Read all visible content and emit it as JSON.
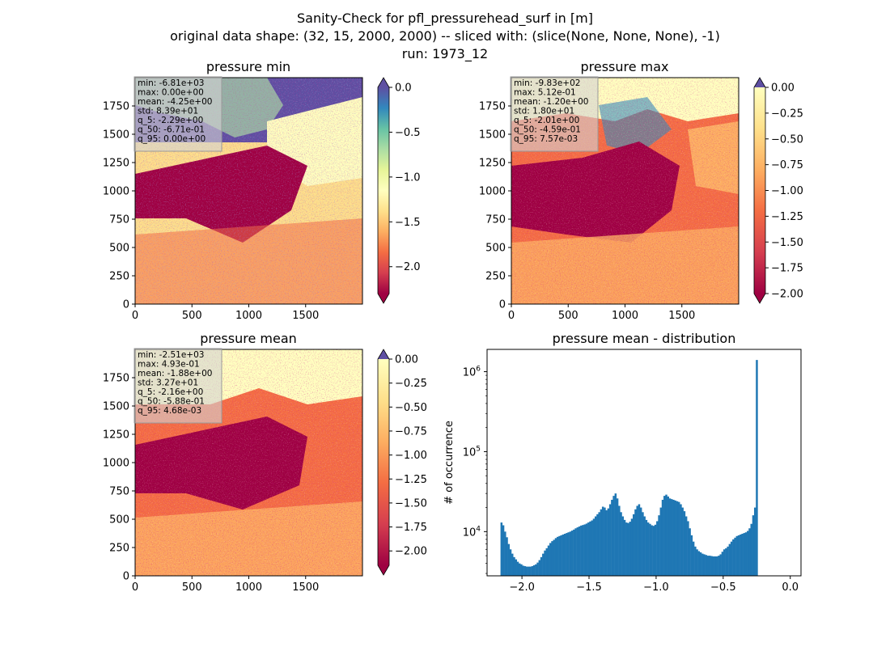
{
  "suptitle": [
    "Sanity-Check for pfl_pressurehead_surf in [m]",
    "original data shape: (32, 15, 2000, 2000) -- sliced with: (slice(None, None, None), -1)",
    "run: 1973_12"
  ],
  "chart_data": [
    {
      "type": "heatmap",
      "title": "pressure min",
      "colormap": "Spectral",
      "extend": "both",
      "x_ticks": [
        "0",
        "500",
        "1000",
        "1500"
      ],
      "y_ticks": [
        "0",
        "250",
        "500",
        "750",
        "1000",
        "1250",
        "1500",
        "1750"
      ],
      "xlim": [
        0,
        2000
      ],
      "ylim": [
        0,
        2000
      ],
      "clim": [
        -2.3,
        0.0
      ],
      "colorbar_ticks": [
        0.0,
        -0.5,
        -1.0,
        -1.5,
        -2.0
      ],
      "colorbar_tick_labels": [
        "0.0",
        "−0.5",
        "−1.0",
        "−1.5",
        "−2.0"
      ],
      "stats": [
        "min: -6.81e+03",
        "max: 0.00e+00",
        "mean: -4.25e+00",
        "std: 8.39e+01",
        "q_5: -2.29e+00",
        "q_50: -6.71e-01",
        "q_95: 0.00e+00"
      ]
    },
    {
      "type": "heatmap",
      "title": "pressure max",
      "colormap": "Spectral",
      "extend": "both",
      "x_ticks": [
        "0",
        "500",
        "1000",
        "1500"
      ],
      "y_ticks": [
        "0",
        "250",
        "500",
        "750",
        "1000",
        "1250",
        "1500",
        "1750"
      ],
      "xlim": [
        0,
        2000
      ],
      "ylim": [
        0,
        2000
      ],
      "clim": [
        -2.0,
        0.0
      ],
      "colorbar_ticks": [
        0.0,
        -0.25,
        -0.5,
        -0.75,
        -1.0,
        -1.25,
        -1.5,
        -1.75,
        -2.0
      ],
      "colorbar_tick_labels": [
        "0.00",
        "−0.25",
        "−0.50",
        "−0.75",
        "−1.00",
        "−1.25",
        "−1.50",
        "−1.75",
        "−2.00"
      ],
      "stats": [
        "min: -9.83e+02",
        "max: 5.12e-01",
        "mean: -1.20e+00",
        "std: 1.80e+01",
        "q_5: -2.01e+00",
        "q_50: -4.59e-01",
        "q_95: 7.57e-03"
      ]
    },
    {
      "type": "heatmap",
      "title": "pressure mean",
      "colormap": "Spectral",
      "extend": "both",
      "x_ticks": [
        "0",
        "500",
        "1000",
        "1500"
      ],
      "y_ticks": [
        "0",
        "250",
        "500",
        "750",
        "1000",
        "1250",
        "1500",
        "1750"
      ],
      "xlim": [
        0,
        2000
      ],
      "ylim": [
        0,
        2000
      ],
      "clim": [
        -2.15,
        0.0
      ],
      "colorbar_ticks": [
        0.0,
        -0.25,
        -0.5,
        -0.75,
        -1.0,
        -1.25,
        -1.5,
        -1.75,
        -2.0
      ],
      "colorbar_tick_labels": [
        "0.00",
        "−0.25",
        "−0.50",
        "−0.75",
        "−1.00",
        "−1.25",
        "−1.50",
        "−1.75",
        "−2.00"
      ],
      "stats": [
        "min: -2.51e+03",
        "max: 4.93e-01",
        "mean: -1.88e+00",
        "std: 3.27e+01",
        "q_5: -2.16e+00",
        "q_50: -5.88e-01",
        "q_95: 4.68e-03"
      ]
    },
    {
      "type": "bar",
      "title": "pressure mean - distribution",
      "ylabel": "# of occurrence",
      "xlabel": "",
      "yscale": "log",
      "color": "#1f77b4",
      "xlim": [
        -2.26,
        0.08
      ],
      "ylim": [
        2800,
        1900000
      ],
      "x_ticks": [
        -2.0,
        -1.5,
        -1.0,
        -0.5,
        0.0
      ],
      "x_tick_labels": [
        "−2.0",
        "−1.5",
        "−1.0",
        "−0.5",
        "0.0"
      ],
      "y_ticks": [
        10000,
        100000,
        1000000
      ],
      "y_tick_labels": [
        "10^4",
        "10^5",
        "10^6"
      ],
      "bin_start": -2.16,
      "bin_width": 0.0135,
      "values": [
        13000,
        12000,
        10000,
        8500,
        7000,
        6000,
        5300,
        4800,
        4500,
        4200,
        4000,
        3900,
        3750,
        3700,
        3650,
        3650,
        3650,
        3700,
        3800,
        3900,
        4100,
        4400,
        4800,
        5300,
        5800,
        6200,
        6700,
        7200,
        7600,
        7900,
        8300,
        8600,
        8800,
        9000,
        9200,
        9400,
        9600,
        9800,
        10000,
        10300,
        10600,
        11000,
        11300,
        11600,
        11900,
        12100,
        12300,
        12600,
        13000,
        13400,
        13800,
        14500,
        15500,
        16500,
        17500,
        19000,
        20500,
        20000,
        18500,
        19500,
        22000,
        25000,
        28000,
        30000,
        26000,
        21000,
        17500,
        15500,
        14000,
        13000,
        12800,
        13300,
        14500,
        16500,
        19000,
        21000,
        22000,
        20000,
        17500,
        15500,
        14000,
        13000,
        12500,
        12000,
        11800,
        12200,
        13500,
        16000,
        20000,
        25000,
        28000,
        29000,
        27500,
        26000,
        25500,
        25000,
        24500,
        24000,
        23500,
        22000,
        20000,
        18000,
        15500,
        13500,
        11000,
        9000,
        7500,
        6500,
        6000,
        5700,
        5500,
        5300,
        5200,
        5100,
        5000,
        5000,
        4950,
        4900,
        4900,
        4900,
        5000,
        5200,
        5600,
        6000,
        6200,
        6500,
        7000,
        7500,
        8000,
        8400,
        8800,
        9000,
        9200,
        9400,
        9600,
        9800,
        10200,
        11000,
        12500,
        16000,
        20000,
        1400000
      ]
    }
  ]
}
